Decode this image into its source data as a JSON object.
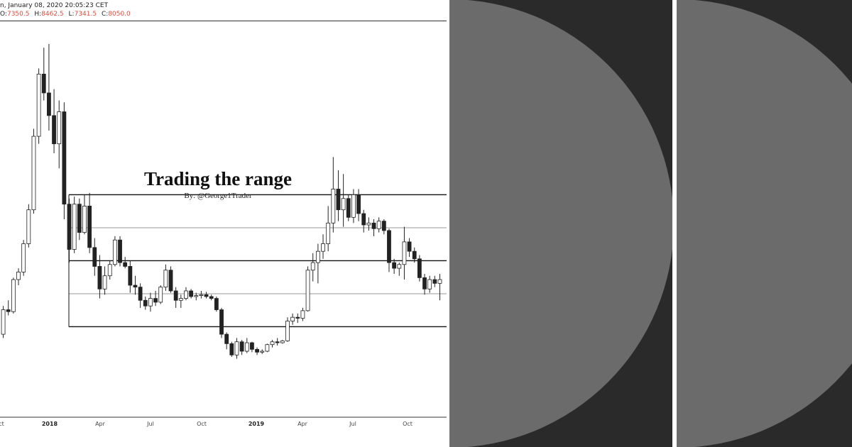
{
  "header": {
    "datetime": "n, January 08, 2020 20:05:23 CET",
    "ohlc": [
      {
        "key": "O:",
        "value": "7350.5"
      },
      {
        "key": "H:",
        "value": "8462.5"
      },
      {
        "key": "L:",
        "value": "7341.5"
      },
      {
        "key": "C:",
        "value": "8050.0"
      }
    ]
  },
  "chart_data": {
    "type": "candlestick",
    "title": "Trading the range",
    "subtitle": "By: @George1Trader",
    "x_ticks": [
      {
        "label": "ct",
        "major": false
      },
      {
        "label": "2018",
        "major": true
      },
      {
        "label": "Apr",
        "major": false
      },
      {
        "label": "Jul",
        "major": false
      },
      {
        "label": "Oct",
        "major": false
      },
      {
        "label": "2019",
        "major": true
      },
      {
        "label": "Apr",
        "major": false
      },
      {
        "label": "Jul",
        "major": false
      },
      {
        "label": "Oct",
        "major": false
      }
    ],
    "range_lines": [
      {
        "y": 11800,
        "style": "bold"
      },
      {
        "y": 10050,
        "style": "light"
      },
      {
        "y": 8300,
        "style": "bold"
      },
      {
        "y": 6550,
        "style": "light"
      },
      {
        "y": 4800,
        "style": "bold"
      }
    ],
    "ylim": [
      0,
      21000
    ],
    "candles": [
      [
        4400,
        5900,
        4200,
        5700
      ],
      [
        5700,
        6200,
        5400,
        5600
      ],
      [
        5600,
        7400,
        5500,
        7300
      ],
      [
        7300,
        7900,
        7000,
        7700
      ],
      [
        7700,
        9400,
        7500,
        9200
      ],
      [
        9200,
        11300,
        9000,
        11000
      ],
      [
        11000,
        15300,
        10800,
        14900
      ],
      [
        14900,
        18500,
        14500,
        18200
      ],
      [
        18200,
        19600,
        16800,
        17200
      ],
      [
        17200,
        19800,
        15200,
        16000
      ],
      [
        16000,
        17400,
        14000,
        14500
      ],
      [
        14500,
        16800,
        13200,
        16200
      ],
      [
        16200,
        16700,
        10500,
        11300
      ],
      [
        11300,
        11600,
        8200,
        8900
      ],
      [
        8900,
        11700,
        8700,
        11300
      ],
      [
        11300,
        11600,
        9400,
        9800
      ],
      [
        9800,
        11800,
        9700,
        11200
      ],
      [
        11200,
        11900,
        8700,
        9000
      ],
      [
        9000,
        9500,
        7500,
        8000
      ],
      [
        8000,
        8600,
        6300,
        6800
      ],
      [
        6800,
        8000,
        6500,
        7500
      ],
      [
        7500,
        8300,
        7300,
        8100
      ],
      [
        8100,
        9600,
        8000,
        9400
      ],
      [
        9400,
        9600,
        8000,
        8200
      ],
      [
        8200,
        8500,
        7900,
        8000
      ],
      [
        8000,
        8300,
        6600,
        7000
      ],
      [
        7000,
        7500,
        6500,
        6900
      ],
      [
        6900,
        7100,
        5800,
        6200
      ],
      [
        6200,
        6400,
        5700,
        5900
      ],
      [
        5900,
        6600,
        5600,
        6300
      ],
      [
        6300,
        6700,
        5900,
        6100
      ],
      [
        6100,
        7000,
        6000,
        6900
      ],
      [
        6900,
        8100,
        6700,
        7800
      ],
      [
        7800,
        8000,
        6600,
        6700
      ],
      [
        6700,
        6900,
        5800,
        6200
      ],
      [
        6200,
        6500,
        5800,
        6300
      ],
      [
        6300,
        6900,
        6200,
        6700
      ],
      [
        6700,
        6800,
        6300,
        6400
      ],
      [
        6400,
        6600,
        6200,
        6450
      ],
      [
        6450,
        6700,
        6300,
        6500
      ],
      [
        6500,
        6650,
        6300,
        6400
      ],
      [
        6400,
        6500,
        6200,
        6300
      ],
      [
        6300,
        6400,
        5600,
        5700
      ],
      [
        5700,
        5800,
        4200,
        4400
      ],
      [
        4400,
        4500,
        3600,
        3900
      ],
      [
        3900,
        4000,
        3200,
        3300
      ],
      [
        3300,
        4200,
        3100,
        4000
      ],
      [
        4000,
        4100,
        3300,
        3500
      ],
      [
        3500,
        4200,
        3400,
        3950
      ],
      [
        3950,
        4000,
        3450,
        3600
      ],
      [
        3600,
        3700,
        3300,
        3450
      ],
      [
        3450,
        3600,
        3350,
        3500
      ],
      [
        3500,
        3900,
        3450,
        3850
      ],
      [
        3850,
        4100,
        3700,
        4000
      ],
      [
        4000,
        4200,
        3800,
        3950
      ],
      [
        3950,
        4100,
        3900,
        4050
      ],
      [
        4050,
        5300,
        4000,
        5100
      ],
      [
        5100,
        5500,
        4900,
        5300
      ],
      [
        5300,
        5500,
        5000,
        5250
      ],
      [
        5250,
        5800,
        5100,
        5650
      ],
      [
        5650,
        8000,
        5600,
        7800
      ],
      [
        7800,
        8700,
        7200,
        8200
      ],
      [
        8200,
        9200,
        7100,
        8800
      ],
      [
        8800,
        9700,
        8400,
        9200
      ],
      [
        9200,
        11200,
        8800,
        10300
      ],
      [
        10300,
        13800,
        9800,
        12100
      ],
      [
        12100,
        13100,
        10400,
        11000
      ],
      [
        11000,
        12900,
        10100,
        11600
      ],
      [
        11600,
        11800,
        10400,
        10600
      ],
      [
        10600,
        12100,
        10300,
        11800
      ],
      [
        11800,
        12100,
        10400,
        10800
      ],
      [
        10800,
        11000,
        9800,
        10200
      ],
      [
        10200,
        10600,
        9900,
        10300
      ],
      [
        10300,
        10500,
        9600,
        10000
      ],
      [
        10000,
        10600,
        9800,
        10400
      ],
      [
        10400,
        10500,
        9700,
        9900
      ],
      [
        9900,
        10000,
        7700,
        8200
      ],
      [
        8200,
        8400,
        7600,
        7900
      ],
      [
        7900,
        8200,
        7500,
        8100
      ],
      [
        8100,
        10100,
        7300,
        9300
      ],
      [
        9300,
        9500,
        8500,
        8800
      ],
      [
        8800,
        9000,
        8200,
        8400
      ],
      [
        8400,
        8600,
        7200,
        7400
      ],
      [
        7400,
        7600,
        6500,
        6800
      ],
      [
        6800,
        7500,
        6600,
        7300
      ],
      [
        7300,
        7500,
        6900,
        7100
      ],
      [
        7100,
        7600,
        6200,
        7300
      ]
    ]
  },
  "icons": {
    "panel_a": "half-circle-shape",
    "panel_b": "half-circle-shape"
  }
}
